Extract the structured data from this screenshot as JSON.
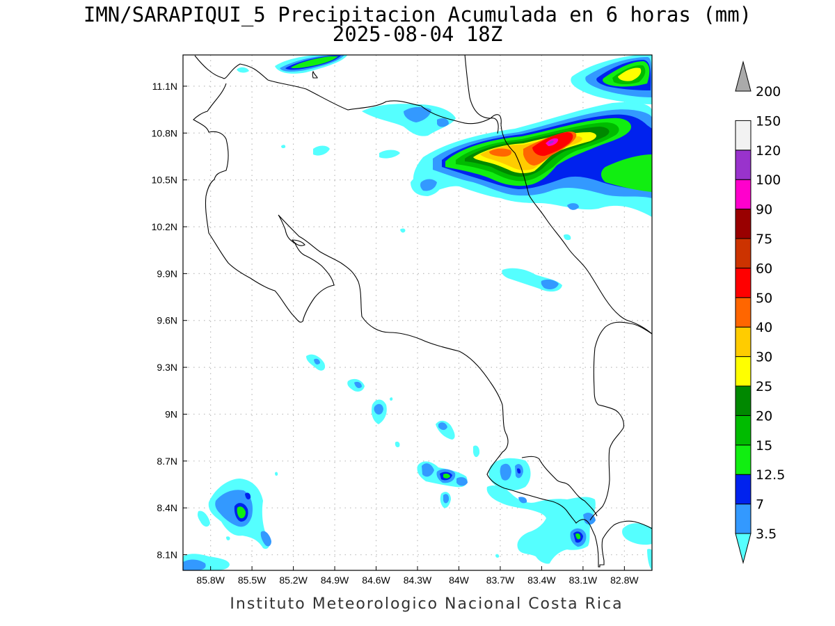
{
  "title": {
    "line1": "IMN/SARAPIQUI_5 Precipitacion Acumulada en 6 horas (mm)",
    "line2": "2025-08-04 18Z"
  },
  "credit": "Instituto Meteorologico Nacional Costa Rica",
  "map": {
    "lon_range": [
      -86.0,
      -82.6
    ],
    "lat_range": [
      8.0,
      11.3
    ],
    "lon_ticks": [
      {
        "value": -85.8,
        "label": "85.8W"
      },
      {
        "value": -85.5,
        "label": "85.5W"
      },
      {
        "value": -85.2,
        "label": "85.2W"
      },
      {
        "value": -84.9,
        "label": "84.9W"
      },
      {
        "value": -84.6,
        "label": "84.6W"
      },
      {
        "value": -84.3,
        "label": "84.3W"
      },
      {
        "value": -84.0,
        "label": "84W"
      },
      {
        "value": -83.7,
        "label": "83.7W"
      },
      {
        "value": -83.4,
        "label": "83.4W"
      },
      {
        "value": -83.1,
        "label": "83.1W"
      },
      {
        "value": -82.8,
        "label": "82.8W"
      }
    ],
    "lat_ticks": [
      {
        "value": 8.1,
        "label": "8.1N"
      },
      {
        "value": 8.4,
        "label": "8.4N"
      },
      {
        "value": 8.7,
        "label": "8.7N"
      },
      {
        "value": 9.0,
        "label": "9N"
      },
      {
        "value": 9.3,
        "label": "9.3N"
      },
      {
        "value": 9.6,
        "label": "9.6N"
      },
      {
        "value": 9.9,
        "label": "9.9N"
      },
      {
        "value": 10.2,
        "label": "10.2N"
      },
      {
        "value": 10.5,
        "label": "10.5N"
      },
      {
        "value": 10.8,
        "label": "10.8N"
      },
      {
        "value": 11.1,
        "label": "11.1N"
      }
    ],
    "grid": true
  },
  "colorbar": {
    "levels": [
      "3.5",
      "7",
      "12.5",
      "15",
      "20",
      "25",
      "30",
      "40",
      "50",
      "60",
      "75",
      "90",
      "100",
      "120",
      "150",
      "200"
    ],
    "colors": [
      "#55ffff",
      "#3399ff",
      "#0022ee",
      "#11ee11",
      "#00bb00",
      "#008800",
      "#ffff00",
      "#ffcc00",
      "#ff6600",
      "#ff0000",
      "#cc3300",
      "#990000",
      "#ff00cc",
      "#9933cc",
      "#f2f2f2",
      "#aaaaaa"
    ]
  }
}
